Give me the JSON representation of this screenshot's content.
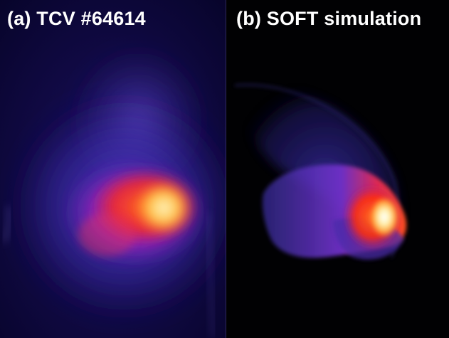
{
  "panels": [
    {
      "label": "(a) TCV #64614",
      "content": "camera-image",
      "colors": {
        "background": "#0a0636",
        "halo": "#3a2aa8",
        "mid": "#8a1fb0",
        "hot": "#ff3a1a",
        "core": "#ffe08a"
      }
    },
    {
      "label": "(b) SOFT simulation",
      "content": "synthetic-image",
      "colors": {
        "background": "#010103",
        "halo": "#2a2390",
        "mid": "#6a2cc0",
        "hot": "#ff2a10",
        "core": "#fff2b0"
      }
    }
  ]
}
